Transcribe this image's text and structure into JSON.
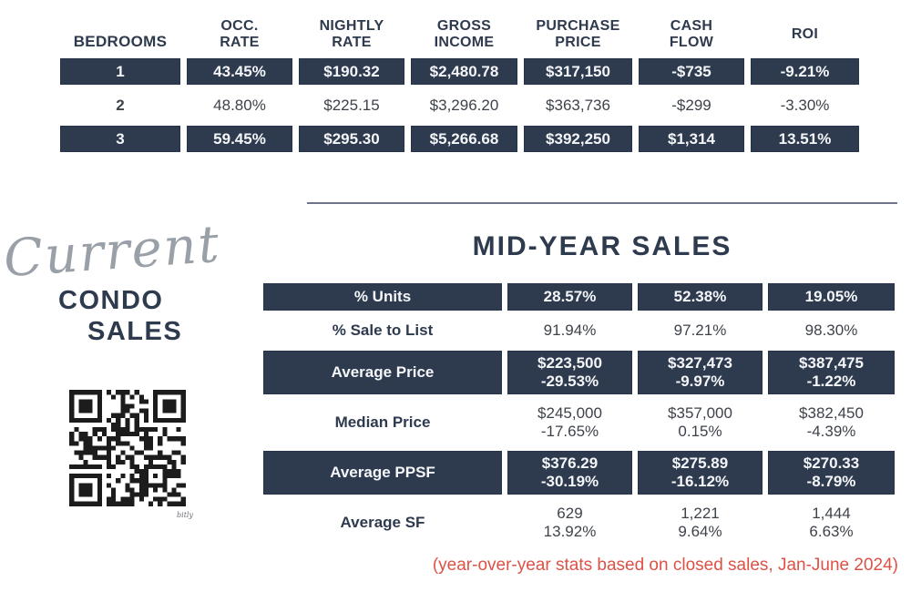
{
  "colors": {
    "navy": "#2e3a4e",
    "light_text": "#f4f6f9",
    "body_text": "#3e434b",
    "script_gray": "#9aa0a8",
    "divider_gray": "#70748a",
    "caption_red": "#dd5247",
    "qr_black": "#1c1c1c"
  },
  "top_table": {
    "headers": [
      [
        "BEDROOMS"
      ],
      [
        "OCC.",
        "RATE"
      ],
      [
        "NIGHTLY",
        "RATE"
      ],
      [
        "GROSS",
        "INCOME"
      ],
      [
        "PURCHASE",
        "PRICE"
      ],
      [
        "CASH",
        "FLOW"
      ],
      [
        "ROI"
      ]
    ],
    "rows": [
      {
        "dark": true,
        "cells": [
          "1",
          "43.45%",
          "$190.32",
          "$2,480.78",
          "$317,150",
          "-$735",
          "-9.21%"
        ]
      },
      {
        "dark": false,
        "cells": [
          "2",
          "48.80%",
          "$225.15",
          "$3,296.20",
          "$363,736",
          "-$299",
          "-3.30%"
        ]
      },
      {
        "dark": true,
        "cells": [
          "3",
          "59.45%",
          "$295.30",
          "$5,266.68",
          "$392,250",
          "$1,314",
          "13.51%"
        ]
      }
    ]
  },
  "branding": {
    "script_word": "Current",
    "title_line1": "CONDO",
    "title_line2": "SALES",
    "qr_credit": "bitly"
  },
  "midyear": {
    "title": "MID-YEAR SALES",
    "rows": [
      {
        "label": "% Units",
        "dark": true,
        "values": [
          [
            "28.57%"
          ],
          [
            "52.38%"
          ],
          [
            "19.05%"
          ]
        ]
      },
      {
        "label": "% Sale to List",
        "dark": false,
        "values": [
          [
            "91.94%"
          ],
          [
            "97.21%"
          ],
          [
            "98.30%"
          ]
        ]
      },
      {
        "label": "Average Price",
        "dark": true,
        "values": [
          [
            "$223,500",
            "-29.53%"
          ],
          [
            "$327,473",
            "-9.97%"
          ],
          [
            "$387,475",
            "-1.22%"
          ]
        ]
      },
      {
        "label": "Median Price",
        "dark": false,
        "values": [
          [
            "$245,000",
            "-17.65%"
          ],
          [
            "$357,000",
            "0.15%"
          ],
          [
            "$382,450",
            "-4.39%"
          ]
        ]
      },
      {
        "label": "Average PPSF",
        "dark": true,
        "values": [
          [
            "$376.29",
            "-30.19%"
          ],
          [
            "$275.89",
            "-16.12%"
          ],
          [
            "$270.33",
            "-8.79%"
          ]
        ]
      },
      {
        "label": "Average SF",
        "dark": false,
        "values": [
          [
            "629",
            "13.92%"
          ],
          [
            "1,221",
            "9.64%"
          ],
          [
            "1,444",
            "6.63%"
          ]
        ]
      }
    ],
    "caption": "(year-over-year stats based on closed sales, Jan-June 2024)"
  }
}
